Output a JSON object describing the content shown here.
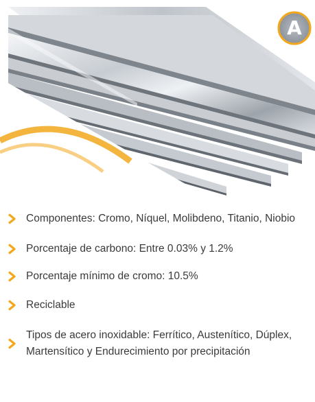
{
  "logo": {
    "letter": "A"
  },
  "features": [
    "Componentes: Cromo, Níquel, Molibdeno, Titanio, Niobio",
    "Porcentaje de carbono: Entre 0.03% y 1.2%",
    "Porcentaje mínimo de cromo: 10.5%",
    "Reciclable",
    "Tipos de acero inoxidable: Ferrítico, Austenítico, Dúplex, Martensítico y Endurecimiento por precipitación"
  ],
  "colors": {
    "accent": "#f2a81d",
    "text": "#3a3a3a",
    "steel_light": "#e9ecef",
    "steel_dark": "#6f747a"
  },
  "icons": {
    "bullet": "chevron-right-icon"
  }
}
